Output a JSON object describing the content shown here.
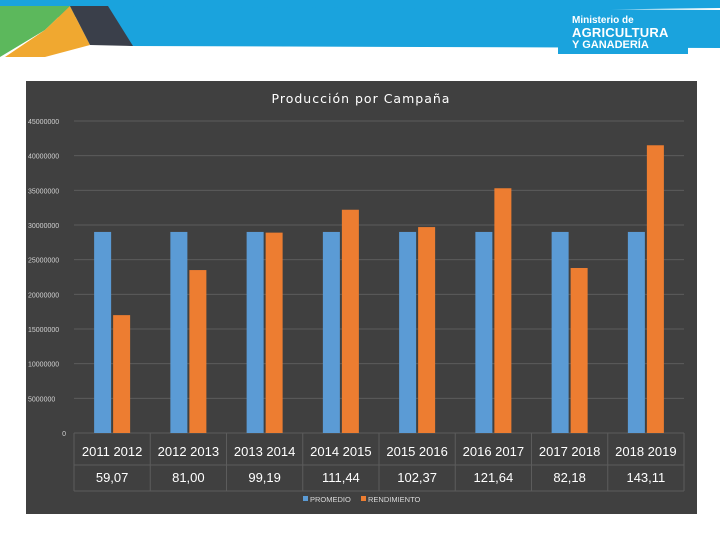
{
  "header": {
    "logo": {
      "line1": "Ministerio de",
      "line2": "AGRICULTURA",
      "line3": "Y GANADERÍA"
    }
  },
  "colors": {
    "promedio": "#5b9bd5",
    "rendimiento": "#ed7d31",
    "chart_bg": "#404040",
    "header_blue": "#1aa3dd"
  },
  "chart_data": {
    "type": "bar",
    "title": "Producción por Campaña",
    "categories": [
      "2011 2012",
      "2012 2013",
      "2013 2014",
      "2014 2015",
      "2015 2016",
      "2016 2017",
      "2017 2018",
      "2018 2019"
    ],
    "series": [
      {
        "name": "PROMEDIO",
        "values": [
          29000000,
          29000000,
          29000000,
          29000000,
          29000000,
          29000000,
          29000000,
          29000000
        ]
      },
      {
        "name": "RENDIMIENTO",
        "values": [
          17000000,
          23500000,
          28900000,
          32200000,
          29700000,
          35300000,
          23800000,
          41500000
        ]
      }
    ],
    "table_row": [
      "59,07",
      "81,00",
      "99,19",
      "111,44",
      "102,37",
      "121,64",
      "82,18",
      "143,11"
    ],
    "y_ticks": [
      "45000000",
      "40000000",
      "35000000",
      "30000000",
      "25000000",
      "20000000",
      "15000000",
      "10000000",
      "5000000",
      "0"
    ],
    "ylim": [
      0,
      45000000
    ],
    "xlabel": "",
    "ylabel": "",
    "legend": "bottom"
  }
}
